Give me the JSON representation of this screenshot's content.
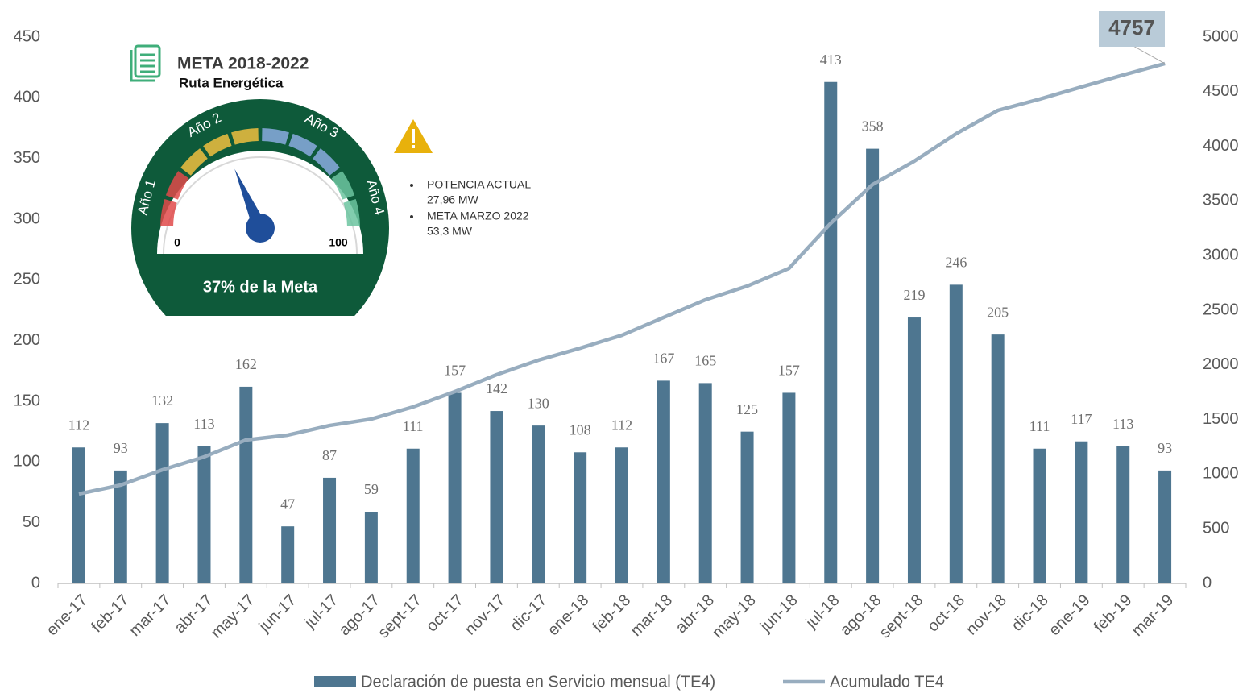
{
  "chart_data": {
    "type": "bar",
    "categories": [
      "ene-17",
      "feb-17",
      "mar-17",
      "abr-17",
      "may-17",
      "jun-17",
      "jul-17",
      "ago-17",
      "sept-17",
      "oct-17",
      "nov-17",
      "dic-17",
      "ene-18",
      "feb-18",
      "mar-18",
      "abr-18",
      "may-18",
      "jun-18",
      "jul-18",
      "ago-18",
      "sept-18",
      "oct-18",
      "nov-18",
      "dic-18",
      "ene-19",
      "feb-19",
      "mar-19"
    ],
    "series": [
      {
        "name": "Declaración de puesta en Servicio mensual (TE4)",
        "type": "bar",
        "color": "#4e7690",
        "values": [
          112,
          93,
          132,
          113,
          162,
          47,
          87,
          59,
          111,
          157,
          142,
          130,
          108,
          112,
          167,
          165,
          125,
          157,
          413,
          358,
          219,
          246,
          205,
          111,
          117,
          113,
          93
        ]
      },
      {
        "name": "Acumulado TE4",
        "type": "line",
        "axis": "y2",
        "color": "#98adbf",
        "values": [
          819,
          900,
          1040,
          1158,
          1313,
          1357,
          1445,
          1504,
          1615,
          1755,
          1910,
          2043,
          2153,
          2271,
          2434,
          2596,
          2721,
          2883,
          3296,
          3650,
          3864,
          4115,
          4329,
          4432,
          4543,
          4653,
          4757
        ]
      }
    ],
    "callout": 4757,
    "ylim": [
      0,
      450
    ],
    "yticks": [
      0,
      50,
      100,
      150,
      200,
      250,
      300,
      350,
      400,
      450
    ],
    "y2lim": [
      0,
      5000
    ],
    "y2ticks": [
      0,
      500,
      1000,
      1500,
      2000,
      2500,
      3000,
      3500,
      4000,
      4500,
      5000
    ],
    "legend": "bottom",
    "gauge": {
      "title": "META 2018-2022",
      "subtitle": "Ruta Energética",
      "min": 0,
      "max": 100,
      "value": 37,
      "value_label": "37% de la Meta",
      "year_labels": [
        "Año 1",
        "Año 2",
        "Año 3",
        "Año 4"
      ],
      "notes": [
        {
          "label": "POTENCIA ACTUAL",
          "value": "27,96 MW"
        },
        {
          "label": "META MARZO 2022",
          "value": "53,3 MW"
        }
      ]
    }
  }
}
